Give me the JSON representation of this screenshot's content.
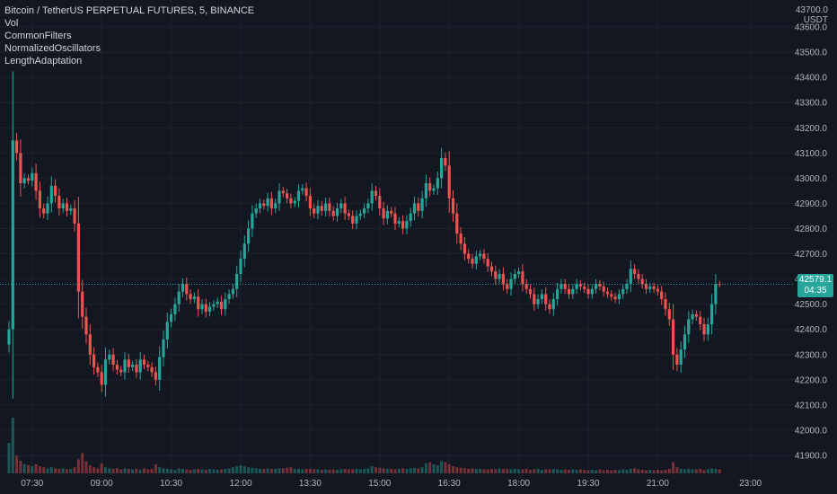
{
  "legend": {
    "symbol_line": "Bitcoin / TetherUS PERPETUAL FUTURES, 5, BINANCE",
    "indicators": [
      "Vol",
      "CommonFilters",
      "NormalizedOscillators",
      "LengthAdaptation"
    ]
  },
  "price_axis": {
    "unit_top": "43700.0",
    "unit": "USDT",
    "last_price_label": "42579.1",
    "countdown": "04:35"
  },
  "colors": {
    "background": "#131722",
    "up": "#26a69a",
    "down": "#ef5350",
    "grid": "#1e222d",
    "text": "#b2b5be"
  },
  "chart_data": {
    "type": "candlestick",
    "title": "Bitcoin / TetherUS PERPETUAL FUTURES, 5, BINANCE",
    "interval": "5",
    "y_unit": "USDT",
    "ylim": [
      41850,
      43700
    ],
    "y_ticks": [
      41900,
      42000,
      42100,
      42200,
      42300,
      42400,
      42500,
      42600,
      42700,
      42800,
      42900,
      43000,
      43100,
      43200,
      43300,
      43400,
      43500,
      43600
    ],
    "x_ticks": [
      {
        "label": "07:30",
        "index": 6
      },
      {
        "label": "09:00",
        "index": 24
      },
      {
        "label": "10:30",
        "index": 42
      },
      {
        "label": "12:00",
        "index": 60
      },
      {
        "label": "13:30",
        "index": 78
      },
      {
        "label": "15:00",
        "index": 96
      },
      {
        "label": "16:30",
        "index": 114
      },
      {
        "label": "18:00",
        "index": 132
      },
      {
        "label": "19:30",
        "index": 150
      },
      {
        "label": "21:00",
        "index": 168
      },
      {
        "label": "23:00",
        "index": 192
      }
    ],
    "last_price": 42579.1,
    "grid": true,
    "closes": [
      42400,
      43150,
      43100,
      42980,
      43000,
      42990,
      43020,
      42950,
      42880,
      42860,
      42900,
      42970,
      42930,
      42880,
      42900,
      42870,
      42880,
      42820,
      42550,
      42450,
      42380,
      42300,
      42250,
      42230,
      42180,
      42280,
      42300,
      42260,
      42240,
      42230,
      42280,
      42250,
      42260,
      42230,
      42280,
      42260,
      42250,
      42230,
      42200,
      42290,
      42360,
      42430,
      42460,
      42500,
      42550,
      42580,
      42540,
      42520,
      42530,
      42480,
      42500,
      42470,
      42490,
      42500,
      42510,
      42480,
      42520,
      42540,
      42560,
      42620,
      42680,
      42740,
      42800,
      42860,
      42880,
      42900,
      42890,
      42920,
      42880,
      42900,
      42950,
      42940,
      42920,
      42900,
      42910,
      42950,
      42960,
      42930,
      42880,
      42860,
      42890,
      42870,
      42900,
      42870,
      42850,
      42880,
      42900,
      42860,
      42850,
      42820,
      42850,
      42860,
      42880,
      42900,
      42950,
      42930,
      42880,
      42840,
      42870,
      42860,
      42820,
      42830,
      42800,
      42830,
      42860,
      42900,
      42870,
      42920,
      42980,
      42950,
      42960,
      43000,
      43080,
      43050,
      42920,
      42860,
      42780,
      42740,
      42700,
      42680,
      42660,
      42690,
      42700,
      42680,
      42650,
      42630,
      42600,
      42620,
      42580,
      42560,
      42600,
      42620,
      42630,
      42580,
      42560,
      42540,
      42500,
      42520,
      42540,
      42500,
      42480,
      42520,
      42560,
      42580,
      42560,
      42540,
      42560,
      42580,
      42570,
      42560,
      42540,
      42560,
      42580,
      42570,
      42550,
      42540,
      42530,
      42520,
      42540,
      42560,
      42580,
      42640,
      42620,
      42600,
      42580,
      42560,
      42570,
      42560,
      42550,
      42520,
      42480,
      42440,
      42300,
      42260,
      42320,
      42380,
      42440,
      42460,
      42450,
      42420,
      42380,
      42420,
      42500,
      42580,
      42579.1
    ],
    "volumes": [
      60,
      110,
      35,
      25,
      18,
      16,
      14,
      18,
      14,
      12,
      10,
      12,
      10,
      9,
      10,
      8,
      9,
      12,
      28,
      40,
      24,
      16,
      12,
      10,
      20,
      12,
      10,
      9,
      11,
      8,
      10,
      9,
      8,
      9,
      7,
      10,
      8,
      9,
      18,
      12,
      10,
      9,
      8,
      7,
      10,
      9,
      8,
      7,
      8,
      9,
      8,
      7,
      9,
      8,
      7,
      8,
      9,
      10,
      12,
      14,
      16,
      14,
      12,
      11,
      10,
      9,
      9,
      10,
      9,
      9,
      10,
      10,
      11,
      12,
      9,
      9,
      8,
      9,
      9,
      8,
      8,
      7,
      8,
      7,
      8,
      7,
      8,
      9,
      8,
      8,
      9,
      8,
      9,
      10,
      14,
      12,
      11,
      10,
      9,
      9,
      8,
      9,
      10,
      9,
      10,
      11,
      10,
      12,
      20,
      22,
      18,
      16,
      24,
      22,
      18,
      14,
      12,
      11,
      10,
      9,
      10,
      9,
      9,
      8,
      8,
      9,
      8,
      10,
      9,
      9,
      8,
      9,
      8,
      8,
      9,
      7,
      8,
      9,
      7,
      8,
      8,
      9,
      8,
      7,
      8,
      7,
      8,
      7,
      8,
      7,
      6,
      7,
      6,
      8,
      6,
      7,
      6,
      7,
      6,
      8,
      7,
      9,
      10,
      8,
      7,
      6,
      7,
      6,
      7,
      6,
      7,
      9,
      22,
      12,
      9,
      8,
      9,
      8,
      8,
      9,
      7,
      8,
      10,
      9,
      8
    ]
  }
}
